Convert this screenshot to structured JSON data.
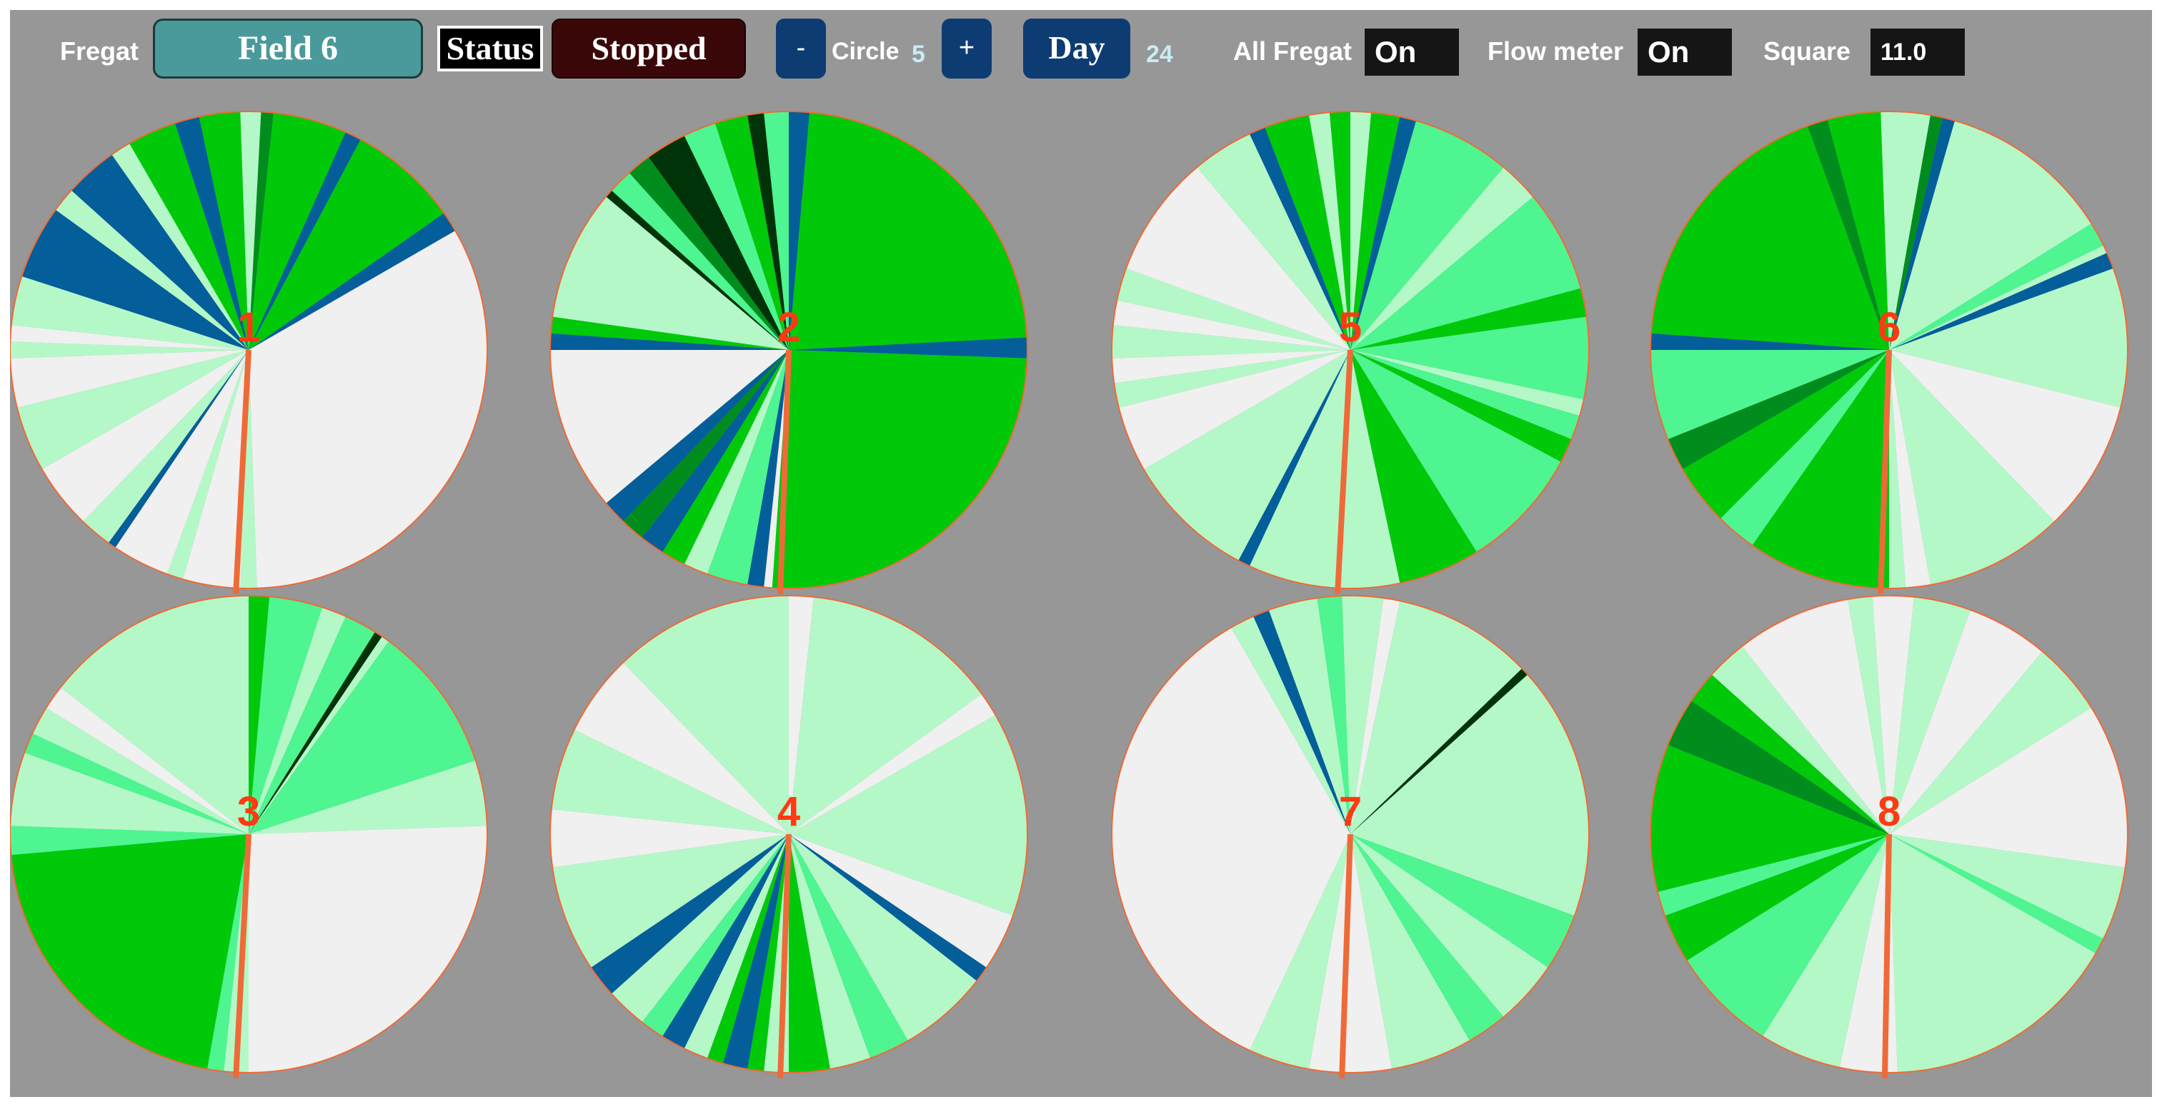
{
  "toolbar": {
    "fregat_label": "Fregat",
    "field_button": "Field 6",
    "status_label": "Status",
    "status_value": "Stopped",
    "circle_minus": "-",
    "circle_label": "Circle",
    "circle_value": "5",
    "circle_plus": "+",
    "day_button": "Day",
    "day_value": "24",
    "all_fregat_label": "All Fregat",
    "all_fregat_value": "On",
    "flow_meter_label": "Flow meter",
    "flow_meter_value": "On",
    "square_label": "Square",
    "square_value": "11.0"
  },
  "colors": {
    "background": "#979797",
    "field_button": "#4a9a9c",
    "stopped_button": "#3a0708",
    "nav_button": "#0d3c73",
    "pivot_line": "#ee6a38",
    "pie_number": "#ff3a12",
    "segment_white": "#f0f0f0",
    "segment_pale": "#b4f8c8",
    "segment_mint": "#4ef590",
    "segment_green": "#00c90a",
    "segment_dark": "#008d1d",
    "segment_black": "#003308",
    "segment_blue": "#035e9a"
  },
  "fields": [
    {
      "label": "1",
      "pointer_angle": 183,
      "segments": [
        [
          "pale",
          0,
          3
        ],
        [
          "dark",
          3,
          6
        ],
        [
          "green",
          6,
          24
        ],
        [
          "blue",
          24,
          28
        ],
        [
          "green",
          28,
          55
        ],
        [
          "blue",
          55,
          60
        ],
        [
          "white",
          60,
          178
        ],
        [
          "pale",
          178,
          182
        ],
        [
          "white",
          182,
          196
        ],
        [
          "pale",
          196,
          200
        ],
        [
          "white",
          200,
          214
        ],
        [
          "blue",
          214,
          216
        ],
        [
          "pale",
          216,
          224
        ],
        [
          "white",
          224,
          240
        ],
        [
          "pale",
          240,
          256
        ],
        [
          "white",
          256,
          268
        ],
        [
          "pale",
          268,
          272
        ],
        [
          "white",
          272,
          276
        ],
        [
          "pale",
          276,
          288
        ],
        [
          "blue",
          288,
          306
        ],
        [
          "pale",
          306,
          312
        ],
        [
          "blue",
          312,
          325
        ],
        [
          "pale",
          325,
          330
        ],
        [
          "green",
          330,
          342
        ],
        [
          "blue",
          342,
          348
        ],
        [
          "green",
          348,
          358
        ],
        [
          "pale",
          358,
          360
        ]
      ]
    },
    {
      "label": "2",
      "pointer_angle": 182,
      "segments": [
        [
          "blue",
          0,
          5
        ],
        [
          "green",
          5,
          87
        ],
        [
          "blue",
          87,
          92
        ],
        [
          "green",
          92,
          184
        ],
        [
          "white",
          184,
          186
        ],
        [
          "blue",
          186,
          190
        ],
        [
          "mint",
          190,
          200
        ],
        [
          "pale",
          200,
          206
        ],
        [
          "green",
          206,
          212
        ],
        [
          "blue",
          212,
          218
        ],
        [
          "dark",
          218,
          224
        ],
        [
          "blue",
          224,
          230
        ],
        [
          "white",
          230,
          270
        ],
        [
          "blue",
          270,
          274
        ],
        [
          "green",
          274,
          278
        ],
        [
          "pale",
          278,
          310
        ],
        [
          "black",
          310,
          312
        ],
        [
          "mint",
          312,
          318
        ],
        [
          "dark",
          318,
          324
        ],
        [
          "black",
          324,
          334
        ],
        [
          "mint",
          334,
          342
        ],
        [
          "green",
          342,
          350
        ],
        [
          "black",
          350,
          354
        ],
        [
          "mint",
          354,
          360
        ]
      ]
    },
    {
      "label": "5",
      "pointer_angle": 183,
      "segments": [
        [
          "pale",
          0,
          5
        ],
        [
          "green",
          5,
          12
        ],
        [
          "blue",
          12,
          16
        ],
        [
          "mint",
          16,
          40
        ],
        [
          "pale",
          40,
          50
        ],
        [
          "mint",
          50,
          75
        ],
        [
          "green",
          75,
          82
        ],
        [
          "mint",
          82,
          102
        ],
        [
          "pale",
          102,
          106
        ],
        [
          "mint",
          106,
          112
        ],
        [
          "green",
          112,
          118
        ],
        [
          "mint",
          118,
          148
        ],
        [
          "green",
          148,
          168
        ],
        [
          "pale",
          168,
          205
        ],
        [
          "blue",
          205,
          208
        ],
        [
          "pale",
          208,
          240
        ],
        [
          "white",
          240,
          256
        ],
        [
          "pale",
          256,
          262
        ],
        [
          "white",
          262,
          268
        ],
        [
          "pale",
          268,
          276
        ],
        [
          "white",
          276,
          282
        ],
        [
          "pale",
          282,
          290
        ],
        [
          "white",
          290,
          320
        ],
        [
          "pale",
          320,
          335
        ],
        [
          "blue",
          335,
          339
        ],
        [
          "green",
          339,
          350
        ],
        [
          "pale",
          350,
          355
        ],
        [
          "green",
          355,
          360
        ]
      ]
    },
    {
      "label": "6",
      "pointer_angle": 182,
      "segments": [
        [
          "pale",
          0,
          10
        ],
        [
          "dark",
          10,
          13
        ],
        [
          "blue",
          13,
          16
        ],
        [
          "pale",
          16,
          58
        ],
        [
          "mint",
          58,
          64
        ],
        [
          "pale",
          64,
          66
        ],
        [
          "blue",
          66,
          70
        ],
        [
          "pale",
          70,
          104
        ],
        [
          "white",
          104,
          136
        ],
        [
          "pale",
          136,
          170
        ],
        [
          "white",
          170,
          176
        ],
        [
          "pale",
          176,
          180
        ],
        [
          "green",
          180,
          215
        ],
        [
          "mint",
          215,
          225
        ],
        [
          "green",
          225,
          240
        ],
        [
          "dark",
          240,
          248
        ],
        [
          "mint",
          248,
          270
        ],
        [
          "blue",
          270,
          274
        ],
        [
          "green",
          274,
          340
        ],
        [
          "dark",
          340,
          345
        ],
        [
          "green",
          345,
          358
        ],
        [
          "pale",
          358,
          360
        ]
      ]
    },
    {
      "label": "3",
      "pointer_angle": 183,
      "segments": [
        [
          "green",
          0,
          5
        ],
        [
          "mint",
          5,
          18
        ],
        [
          "pale",
          18,
          24
        ],
        [
          "mint",
          24,
          32
        ],
        [
          "black",
          32,
          34
        ],
        [
          "pale",
          34,
          36
        ],
        [
          "mint",
          36,
          72
        ],
        [
          "pale",
          72,
          88
        ],
        [
          "white",
          88,
          180
        ],
        [
          "pale",
          180,
          186
        ],
        [
          "mint",
          186,
          190
        ],
        [
          "green",
          190,
          265
        ],
        [
          "mint",
          265,
          272
        ],
        [
          "pale",
          272,
          290
        ],
        [
          "mint",
          290,
          295
        ],
        [
          "pale",
          295,
          302
        ],
        [
          "white",
          302,
          308
        ],
        [
          "pale",
          308,
          360
        ]
      ]
    },
    {
      "label": "4",
      "pointer_angle": 182,
      "segments": [
        [
          "white",
          0,
          6
        ],
        [
          "pale",
          6,
          54
        ],
        [
          "white",
          54,
          60
        ],
        [
          "pale",
          60,
          110
        ],
        [
          "white",
          110,
          124
        ],
        [
          "blue",
          124,
          128
        ],
        [
          "pale",
          128,
          150
        ],
        [
          "mint",
          150,
          160
        ],
        [
          "pale",
          160,
          170
        ],
        [
          "green",
          170,
          180
        ],
        [
          "pale",
          180,
          186
        ],
        [
          "green",
          186,
          190
        ],
        [
          "blue",
          190,
          196
        ],
        [
          "green",
          196,
          200
        ],
        [
          "pale",
          200,
          206
        ],
        [
          "blue",
          206,
          212
        ],
        [
          "mint",
          212,
          218
        ],
        [
          "pale",
          218,
          228
        ],
        [
          "blue",
          228,
          236
        ],
        [
          "pale",
          236,
          262
        ],
        [
          "white",
          262,
          276
        ],
        [
          "pale",
          276,
          296
        ],
        [
          "white",
          296,
          316
        ],
        [
          "pale",
          316,
          360
        ]
      ]
    },
    {
      "label": "7",
      "pointer_angle": 182,
      "segments": [
        [
          "pale",
          0,
          8
        ],
        [
          "white",
          8,
          12
        ],
        [
          "pale",
          12,
          46
        ],
        [
          "black",
          46,
          48
        ],
        [
          "pale",
          48,
          110
        ],
        [
          "mint",
          110,
          124
        ],
        [
          "pale",
          124,
          140
        ],
        [
          "mint",
          140,
          150
        ],
        [
          "pale",
          150,
          170
        ],
        [
          "white",
          170,
          190
        ],
        [
          "pale",
          190,
          205
        ],
        [
          "white",
          205,
          330
        ],
        [
          "pale",
          330,
          336
        ],
        [
          "blue",
          336,
          340
        ],
        [
          "pale",
          340,
          352
        ],
        [
          "mint",
          352,
          358
        ],
        [
          "pale",
          358,
          360
        ]
      ]
    },
    {
      "label": "8",
      "pointer_angle": 181,
      "segments": [
        [
          "white",
          0,
          6
        ],
        [
          "pale",
          6,
          20
        ],
        [
          "white",
          20,
          40
        ],
        [
          "pale",
          40,
          58
        ],
        [
          "white",
          58,
          98
        ],
        [
          "pale",
          98,
          116
        ],
        [
          "mint",
          116,
          120
        ],
        [
          "pale",
          120,
          178
        ],
        [
          "white",
          178,
          192
        ],
        [
          "pale",
          192,
          212
        ],
        [
          "mint",
          212,
          238
        ],
        [
          "green",
          238,
          250
        ],
        [
          "mint",
          250,
          256
        ],
        [
          "green",
          256,
          292
        ],
        [
          "dark",
          292,
          304
        ],
        [
          "green",
          304,
          312
        ],
        [
          "pale",
          312,
          322
        ],
        [
          "white",
          322,
          350
        ],
        [
          "pale",
          350,
          356
        ],
        [
          "white",
          356,
          360
        ]
      ]
    }
  ]
}
